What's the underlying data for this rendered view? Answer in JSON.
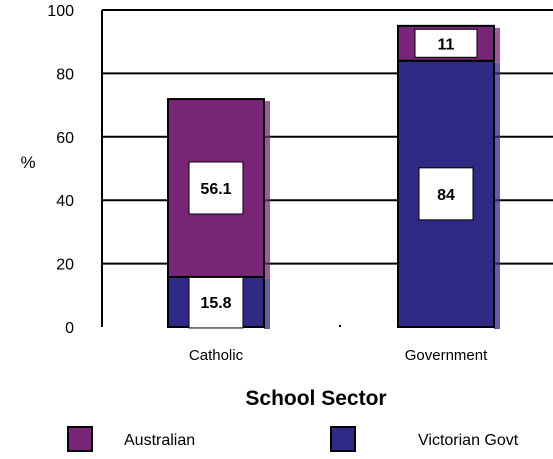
{
  "chart_data": {
    "type": "bar",
    "stacked": true,
    "categories": [
      "Catholic",
      "Government"
    ],
    "series": [
      {
        "name": "Victorian Govt",
        "color": "#2e2a85",
        "values": [
          15.8,
          84
        ]
      },
      {
        "name": "Australian",
        "color": "#7a2678",
        "values": [
          56.1,
          11
        ]
      }
    ],
    "xlabel": "School Sector",
    "ylabel": "%",
    "ylim": [
      0,
      100
    ],
    "yticks": [
      0,
      20,
      40,
      60,
      80,
      100
    ],
    "ytick_labels": [
      "0",
      "20",
      "40",
      "60",
      "80",
      "100"
    ],
    "data_labels": [
      [
        "15.8",
        "84"
      ],
      [
        "56.1",
        "11"
      ]
    ],
    "grid": true,
    "legend_position": "bottom"
  }
}
